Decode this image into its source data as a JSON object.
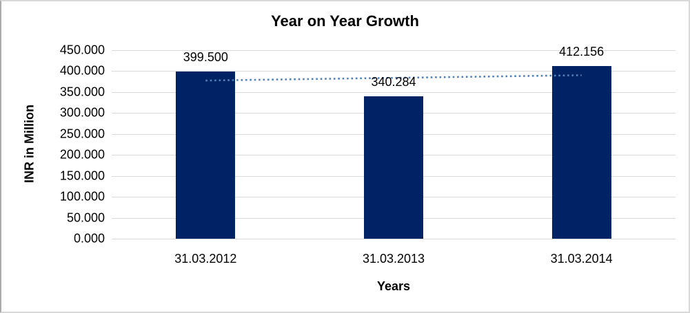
{
  "chart_data": {
    "type": "bar",
    "title": "Year on Year Growth",
    "xlabel": "Years",
    "ylabel": "INR in Million",
    "categories": [
      "31.03.2012",
      "31.03.2013",
      "31.03.2014"
    ],
    "values": [
      399.5,
      340.284,
      412.156
    ],
    "data_labels": [
      "399.500",
      "340.284",
      "412.156"
    ],
    "ylim": [
      0,
      450
    ],
    "ytick_step": 50,
    "ytick_labels": [
      "0.000",
      "50.000",
      "100.000",
      "150.000",
      "200.000",
      "250.000",
      "300.000",
      "350.000",
      "400.000",
      "450.000"
    ],
    "grid": true,
    "legend": "none",
    "bar_color": "#002366",
    "gridline_color": "#D9D9D9",
    "text_color": "#000000",
    "trendline": {
      "kind": "linear",
      "style": "dotted",
      "color": "#4F81BD"
    }
  }
}
